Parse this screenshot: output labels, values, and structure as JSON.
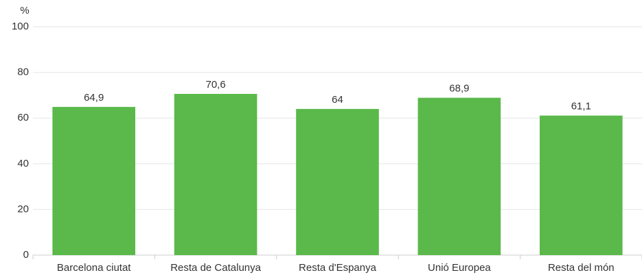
{
  "chart_data": {
    "type": "bar",
    "y_label": "%",
    "categories": [
      "Barcelona ciutat",
      "Resta de Catalunya",
      "Resta d'Espanya",
      "Unió Europea",
      "Resta del món"
    ],
    "values": [
      64.9,
      70.6,
      64,
      68.9,
      61.1
    ],
    "value_labels": [
      "64,9",
      "70,6",
      "64",
      "68,9",
      "61,1"
    ],
    "color": "#5ab94a",
    "ylim": [
      0,
      100
    ],
    "yticks": [
      0,
      20,
      40,
      60,
      80,
      100
    ],
    "grid": true
  }
}
